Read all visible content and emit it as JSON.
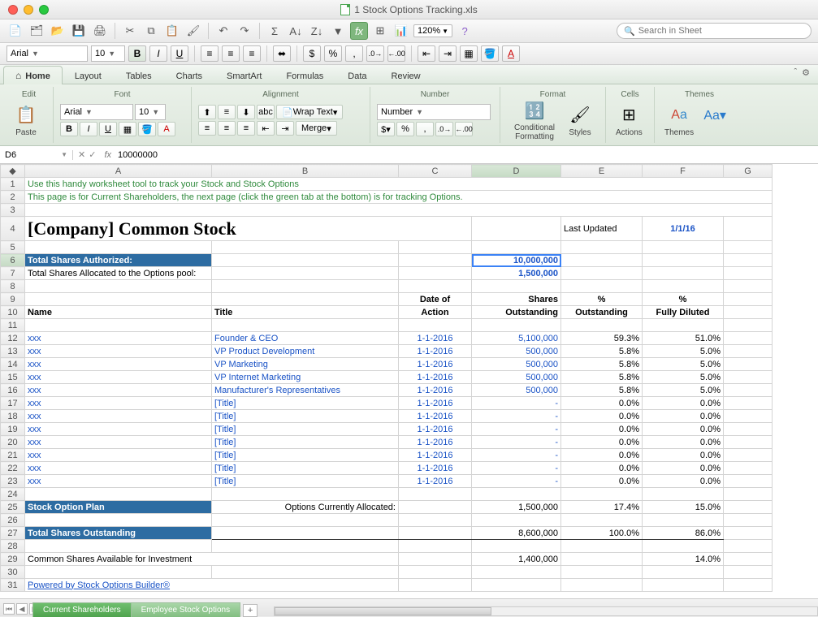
{
  "window": {
    "title": "1 Stock Options Tracking.xls"
  },
  "toolbar": {
    "zoom": "120%",
    "search_placeholder": "Search in Sheet"
  },
  "format_row": {
    "font_name": "Arial",
    "font_size": "10"
  },
  "ribbon": {
    "tabs": [
      "A Home",
      "Layout",
      "Tables",
      "Charts",
      "SmartArt",
      "Formulas",
      "Data",
      "Review"
    ],
    "active_tab": 0,
    "groups": {
      "edit": "Edit",
      "font": "Font",
      "alignment": "Alignment",
      "number": "Number",
      "format": "Format",
      "cells": "Cells",
      "themes": "Themes"
    },
    "paste": "Paste",
    "cond_fmt": "Conditional Formatting",
    "styles": "Styles",
    "actions": "Actions",
    "themes_btn": "Themes",
    "aa": "Aa▾",
    "font_name": "Arial",
    "font_size": "10",
    "number_format": "Number",
    "wrap_text": "Wrap Text",
    "merge": "Merge"
  },
  "formula_bar": {
    "name_box": "D6",
    "formula": "10000000"
  },
  "columns": [
    "A",
    "B",
    "C",
    "D",
    "E",
    "F",
    "G"
  ],
  "sheet": {
    "note1": "Use this handy worksheet tool to track your Stock and Stock Options",
    "note2": "This page is for Current Shareholders, the next page (click the green tab at the bottom) is for tracking Options.",
    "title": "[Company] Common Stock",
    "last_updated_label": "Last Updated",
    "last_updated": "1/1/16",
    "total_auth_label": "Total Shares Authorized:",
    "total_auth": "10,000,000",
    "total_alloc_label": "Total Shares Allocated to the Options pool:",
    "total_alloc": "1,500,000",
    "hdr_name": "Name",
    "hdr_title": "Title",
    "hdr_date": "Date of Action",
    "hdr_shares": "Shares Outstanding",
    "hdr_pct_out": "% Outstanding",
    "hdr_pct_dil": "% Fully Diluted",
    "rows": [
      {
        "name": "xxx",
        "title": "Founder & CEO",
        "date": "1-1-2016",
        "shares": "5,100,000",
        "pout": "59.3%",
        "pdil": "51.0%"
      },
      {
        "name": "xxx",
        "title": "VP Product Development",
        "date": "1-1-2016",
        "shares": "500,000",
        "pout": "5.8%",
        "pdil": "5.0%"
      },
      {
        "name": "xxx",
        "title": "VP Marketing",
        "date": "1-1-2016",
        "shares": "500,000",
        "pout": "5.8%",
        "pdil": "5.0%"
      },
      {
        "name": "xxx",
        "title": "VP Internet Marketing",
        "date": "1-1-2016",
        "shares": "500,000",
        "pout": "5.8%",
        "pdil": "5.0%"
      },
      {
        "name": "xxx",
        "title": "Manufacturer's Representatives",
        "date": "1-1-2016",
        "shares": "500,000",
        "pout": "5.8%",
        "pdil": "5.0%"
      },
      {
        "name": "xxx",
        "title": "[Title]",
        "date": "1-1-2016",
        "shares": "-",
        "pout": "0.0%",
        "pdil": "0.0%"
      },
      {
        "name": "xxx",
        "title": "[Title]",
        "date": "1-1-2016",
        "shares": "-",
        "pout": "0.0%",
        "pdil": "0.0%"
      },
      {
        "name": "xxx",
        "title": "[Title]",
        "date": "1-1-2016",
        "shares": "-",
        "pout": "0.0%",
        "pdil": "0.0%"
      },
      {
        "name": "xxx",
        "title": "[Title]",
        "date": "1-1-2016",
        "shares": "-",
        "pout": "0.0%",
        "pdil": "0.0%"
      },
      {
        "name": "xxx",
        "title": "[Title]",
        "date": "1-1-2016",
        "shares": "-",
        "pout": "0.0%",
        "pdil": "0.0%"
      },
      {
        "name": "xxx",
        "title": "[Title]",
        "date": "1-1-2016",
        "shares": "-",
        "pout": "0.0%",
        "pdil": "0.0%"
      },
      {
        "name": "xxx",
        "title": "[Title]",
        "date": "1-1-2016",
        "shares": "-",
        "pout": "0.0%",
        "pdil": "0.0%"
      }
    ],
    "stock_plan_label": "Stock Option Plan",
    "options_alloc_label": "Options Currently Allocated:",
    "options_alloc": "1,500,000",
    "options_pout": "17.4%",
    "options_pdil": "15.0%",
    "total_out_label": "Total Shares Outstanding",
    "total_out": "8,600,000",
    "total_pout": "100.0%",
    "total_pdil": "86.0%",
    "avail_label": "Common Shares Available for Investment",
    "avail": "1,400,000",
    "avail_pdil": "14.0%",
    "powered": "Powered by Stock Options Builder®"
  },
  "sheet_tabs": {
    "t1": "Current Shareholders",
    "t2": "Employee Stock Options"
  },
  "colors": {
    "ribbon_bg": "#e5eee4",
    "header_dark": "#2d6ca2",
    "green_text": "#2f8a3c",
    "blue_text": "#1a53c6"
  }
}
